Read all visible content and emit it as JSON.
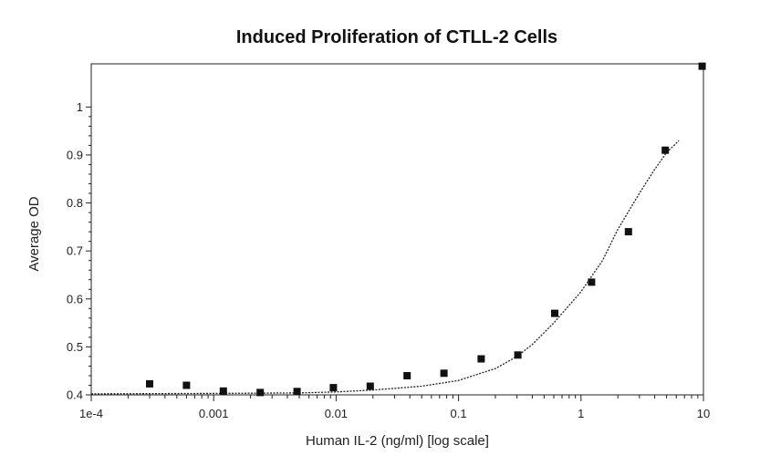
{
  "chart_data": {
    "type": "scatter",
    "title": "Induced Proliferation of CTLL-2 Cells",
    "xlabel": "Human IL-2 (ng/ml) [log scale]",
    "ylabel": "Average OD",
    "x_scale": "log",
    "xlim": [
      0.0001,
      10
    ],
    "ylim": [
      0.4,
      1.09
    ],
    "x_ticks": [
      {
        "value": 0.0001,
        "label": "1e-4"
      },
      {
        "value": 0.001,
        "label": "0.001"
      },
      {
        "value": 0.01,
        "label": "0.01"
      },
      {
        "value": 0.1,
        "label": "0.1"
      },
      {
        "value": 1,
        "label": "1"
      },
      {
        "value": 10,
        "label": "10"
      }
    ],
    "y_ticks": [
      {
        "value": 0.4,
        "label": "0.4"
      },
      {
        "value": 0.5,
        "label": "0.5"
      },
      {
        "value": 0.6,
        "label": "0.6"
      },
      {
        "value": 0.7,
        "label": "0.7"
      },
      {
        "value": 0.8,
        "label": "0.8"
      },
      {
        "value": 0.9,
        "label": "0.9"
      },
      {
        "value": 1,
        "label": "1"
      }
    ],
    "grid": false,
    "series": [
      {
        "points": [
          {
            "x": 0.0003,
            "y": 0.423
          },
          {
            "x": 0.0006,
            "y": 0.42
          },
          {
            "x": 0.0012,
            "y": 0.408
          },
          {
            "x": 0.0024,
            "y": 0.405
          },
          {
            "x": 0.0048,
            "y": 0.407
          },
          {
            "x": 0.0095,
            "y": 0.415
          },
          {
            "x": 0.019,
            "y": 0.418
          },
          {
            "x": 0.038,
            "y": 0.44
          },
          {
            "x": 0.076,
            "y": 0.445
          },
          {
            "x": 0.153,
            "y": 0.475
          },
          {
            "x": 0.305,
            "y": 0.483
          },
          {
            "x": 0.61,
            "y": 0.57
          },
          {
            "x": 1.22,
            "y": 0.635
          },
          {
            "x": 2.44,
            "y": 0.74
          },
          {
            "x": 4.88,
            "y": 0.91
          },
          {
            "x": 9.76,
            "y": 1.085
          }
        ]
      }
    ],
    "fit_curve": {
      "style": "dotted",
      "points": [
        {
          "x": 0.0001,
          "y": 0.402
        },
        {
          "x": 0.001,
          "y": 0.403
        },
        {
          "x": 0.005,
          "y": 0.404
        },
        {
          "x": 0.01,
          "y": 0.406
        },
        {
          "x": 0.02,
          "y": 0.41
        },
        {
          "x": 0.05,
          "y": 0.418
        },
        {
          "x": 0.1,
          "y": 0.43
        },
        {
          "x": 0.2,
          "y": 0.455
        },
        {
          "x": 0.3,
          "y": 0.48
        },
        {
          "x": 0.4,
          "y": 0.505
        },
        {
          "x": 0.6,
          "y": 0.55
        },
        {
          "x": 1.0,
          "y": 0.615
        },
        {
          "x": 1.5,
          "y": 0.68
        },
        {
          "x": 2.0,
          "y": 0.745
        },
        {
          "x": 3.0,
          "y": 0.82
        },
        {
          "x": 4.0,
          "y": 0.87
        },
        {
          "x": 5.0,
          "y": 0.905
        },
        {
          "x": 6.3,
          "y": 0.93
        }
      ]
    },
    "colors": {
      "marker": "#111111",
      "axis": "#222222",
      "curve": "#222222"
    }
  }
}
